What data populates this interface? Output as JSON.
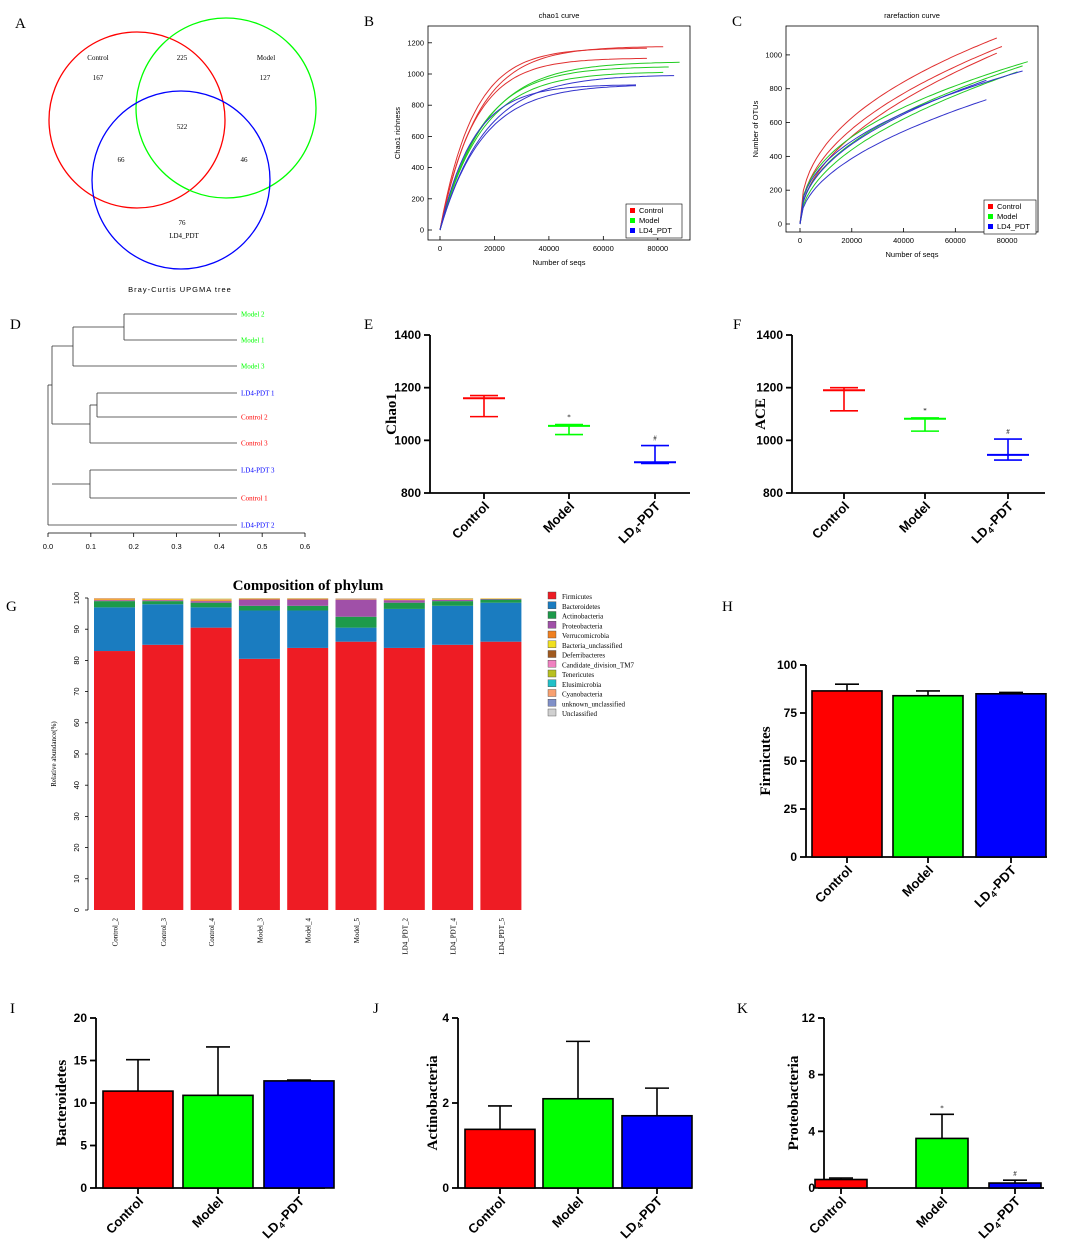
{
  "panel_labels": [
    "A",
    "B",
    "C",
    "D",
    "E",
    "F",
    "G",
    "H",
    "I",
    "J",
    "K"
  ],
  "colors": {
    "control": "#ff0000",
    "model": "#00ff00",
    "ld4": "#0000ff",
    "control_line": "#e03030",
    "model_line": "#22cc22",
    "ld4_line": "#3333cc",
    "control_bar": "#ff0000",
    "model_bar": "#00ff00",
    "ld4_bar": "#0000ff"
  },
  "venn": {
    "sets": [
      {
        "name": "Control",
        "only": "167"
      },
      {
        "name": "Model",
        "only": "127"
      },
      {
        "name": "LD4_PDT",
        "only": "76"
      }
    ],
    "control_model": "225",
    "control_ld4": "66",
    "model_ld4": "46",
    "all": "522"
  },
  "chart_data": [
    {
      "id": "B",
      "type": "line",
      "title": "chao1 curve",
      "xlabel": "Number of seqs",
      "ylabel": "Chao1 richness",
      "xlim": [
        0,
        90000
      ],
      "ylim": [
        0,
        1250
      ],
      "xticks": [
        "0",
        "20000",
        "40000",
        "60000",
        "80000"
      ],
      "yticks": [
        "0",
        "200",
        "400",
        "600",
        "800",
        "1000",
        "1200"
      ],
      "legend": [
        "Control",
        "Model",
        "LD4_PDT"
      ],
      "series": [
        {
          "group": "Control",
          "xmax": 82000,
          "ymax": 1175,
          "k": 0.95
        },
        {
          "group": "Control",
          "xmax": 76000,
          "ymax": 1165,
          "k": 1.1
        },
        {
          "group": "Control",
          "xmax": 76000,
          "ymax": 1100,
          "k": 1.0
        },
        {
          "group": "Model",
          "xmax": 88000,
          "ymax": 1075,
          "k": 0.7
        },
        {
          "group": "Model",
          "xmax": 84000,
          "ymax": 1045,
          "k": 0.75
        },
        {
          "group": "Model",
          "xmax": 82000,
          "ymax": 1010,
          "k": 0.65
        },
        {
          "group": "LD4_PDT",
          "xmax": 86000,
          "ymax": 990,
          "k": 0.6
        },
        {
          "group": "LD4_PDT",
          "xmax": 72000,
          "ymax": 930,
          "k": 0.9
        },
        {
          "group": "LD4_PDT",
          "xmax": 72000,
          "ymax": 925,
          "k": 0.3
        }
      ]
    },
    {
      "id": "C",
      "type": "line",
      "title": "rarefaction curve",
      "xlabel": "Number of seqs",
      "ylabel": "Number of OTUs",
      "xlim": [
        0,
        90000
      ],
      "ylim": [
        0,
        1100
      ],
      "xticks": [
        "0",
        "20000",
        "40000",
        "60000",
        "80000"
      ],
      "yticks": [
        "0",
        "200",
        "400",
        "600",
        "800",
        "1000"
      ],
      "legend": [
        "Control",
        "Model",
        "LD4_PDT"
      ],
      "series": [
        {
          "group": "Control",
          "xmax": 76000,
          "ymax": 1100
        },
        {
          "group": "Control",
          "xmax": 78000,
          "ymax": 1050
        },
        {
          "group": "Control",
          "xmax": 76000,
          "ymax": 1010
        },
        {
          "group": "Model",
          "xmax": 88000,
          "ymax": 960
        },
        {
          "group": "Model",
          "xmax": 86000,
          "ymax": 935
        },
        {
          "group": "Model",
          "xmax": 84000,
          "ymax": 900
        },
        {
          "group": "LD4_PDT",
          "xmax": 86000,
          "ymax": 905
        },
        {
          "group": "LD4_PDT",
          "xmax": 72000,
          "ymax": 850
        },
        {
          "group": "LD4_PDT",
          "xmax": 72000,
          "ymax": 735
        }
      ]
    },
    {
      "id": "D",
      "type": "dendrogram",
      "title": "Bray-Curtis UPGMA tree",
      "xticks": [
        "0.0",
        "0.1",
        "0.2",
        "0.3",
        "0.4",
        "0.5",
        "0.6"
      ],
      "leaves": [
        {
          "name": "Model 2",
          "group": "Model"
        },
        {
          "name": "Model 1",
          "group": "Model"
        },
        {
          "name": "Model 3",
          "group": "Model"
        },
        {
          "name": "LD4-PDT 1",
          "group": "LD4_PDT"
        },
        {
          "name": "Control 2",
          "group": "Control"
        },
        {
          "name": "Control 3",
          "group": "Control"
        },
        {
          "name": "LD4-PDT 3",
          "group": "LD4_PDT"
        },
        {
          "name": "Control 1",
          "group": "Control"
        },
        {
          "name": "LD4-PDT 2",
          "group": "LD4_PDT"
        }
      ]
    },
    {
      "id": "E",
      "type": "scatter",
      "ylabel": "Chao1",
      "ylim": [
        800,
        1400
      ],
      "yticks": [
        "800",
        "1000",
        "1200",
        "1400"
      ],
      "categories": [
        "Control",
        "Model",
        "LD4-PDT"
      ],
      "mean": [
        1160,
        1055,
        917
      ],
      "upper": [
        1170,
        1060,
        980
      ],
      "lower": [
        1090,
        1022,
        912
      ],
      "marks": [
        "",
        "*",
        "#"
      ]
    },
    {
      "id": "F",
      "type": "scatter",
      "ylabel": "ACE",
      "ylim": [
        800,
        1400
      ],
      "yticks": [
        "800",
        "1000",
        "1200",
        "1400"
      ],
      "categories": [
        "Control",
        "Model",
        "LD4-PDT"
      ],
      "mean": [
        1190,
        1082,
        945
      ],
      "upper": [
        1200,
        1085,
        1005
      ],
      "lower": [
        1112,
        1035,
        925
      ],
      "marks": [
        "",
        "*",
        "#"
      ]
    },
    {
      "id": "G",
      "type": "bar",
      "title": "Composition of phylum",
      "ylabel": "Relative abundance(%)",
      "ylim": [
        0,
        100
      ],
      "yticks": [
        "0",
        "10",
        "20",
        "30",
        "40",
        "50",
        "60",
        "70",
        "80",
        "90",
        "100"
      ],
      "categories": [
        "Control_2",
        "Control_3",
        "Control_4",
        "Model_3",
        "Model_4",
        "Model_5",
        "LD4_PDT_2",
        "LD4_PDT_4",
        "LD4_PDT_5"
      ],
      "series": [
        {
          "name": "Firmicutes",
          "color": "#ee1c24",
          "values": [
            83,
            85,
            90.5,
            80.5,
            84,
            86,
            84,
            85,
            86
          ]
        },
        {
          "name": "Bacteroidetes",
          "color": "#1a7cc0",
          "values": [
            14,
            13,
            6.5,
            15.5,
            12,
            4.5,
            12.5,
            12.5,
            12.5
          ]
        },
        {
          "name": "Actinobacteria",
          "color": "#1d9a4a",
          "values": [
            2,
            1,
            1.5,
            1.5,
            1.5,
            3.5,
            2,
            1.5,
            1
          ]
        },
        {
          "name": "Proteobacteria",
          "color": "#a050a8",
          "values": [
            0.3,
            0.3,
            0.5,
            2,
            2,
            5.5,
            0.8,
            0.4,
            0.2
          ]
        },
        {
          "name": "Verrucomicrobia",
          "color": "#f08020",
          "values": [
            0.3,
            0.2,
            0.3,
            0.2,
            0.2,
            0.1,
            0.2,
            0.2,
            0.1
          ]
        },
        {
          "name": "Bacteria_unclassified",
          "color": "#f0e020",
          "values": [
            0.2,
            0.2,
            0.2,
            0.1,
            0.1,
            0.1,
            0.2,
            0.1,
            0.1
          ]
        },
        {
          "name": "Deferribacteres",
          "color": "#a05a1e",
          "values": [
            0.1,
            0.1,
            0.1,
            0.1,
            0.1,
            0.1,
            0.1,
            0.1,
            0
          ]
        },
        {
          "name": "Candidate_division_TM7",
          "color": "#f080c0",
          "values": [
            0.1,
            0,
            0.1,
            0,
            0,
            0,
            0,
            0,
            0
          ]
        },
        {
          "name": "Tenericutes",
          "color": "#b8c020",
          "values": [
            0,
            0,
            0.1,
            0,
            0,
            0,
            0,
            0.1,
            0
          ]
        },
        {
          "name": "Elusimicrobia",
          "color": "#20c0c8",
          "values": [
            0,
            0,
            0,
            0,
            0,
            0,
            0,
            0,
            0
          ]
        },
        {
          "name": "Cyanobacteria",
          "color": "#f8a070",
          "values": [
            0,
            0,
            0,
            0,
            0,
            0,
            0,
            0,
            0
          ]
        },
        {
          "name": "unknown_unclassified",
          "color": "#8090c8",
          "values": [
            0,
            0,
            0,
            0,
            0,
            0,
            0,
            0,
            0
          ]
        },
        {
          "name": "Unclassified",
          "color": "#d0d0d0",
          "values": [
            0,
            0,
            0,
            0,
            0,
            0,
            0,
            0,
            0
          ]
        }
      ]
    },
    {
      "id": "H",
      "type": "bar",
      "ylabel": "Firmicutes",
      "ylim": [
        0,
        100
      ],
      "yticks": [
        "0",
        "25",
        "50",
        "75",
        "100"
      ],
      "categories": [
        "Control",
        "Model",
        "LD4-PDT"
      ],
      "values": [
        86.5,
        84,
        85
      ],
      "errors": [
        3.5,
        2.5,
        0.7
      ],
      "marks": [
        "",
        "",
        ""
      ]
    },
    {
      "id": "I",
      "type": "bar",
      "ylabel": "Bacteroidetes",
      "ylim": [
        0,
        20
      ],
      "yticks": [
        "0",
        "5",
        "10",
        "15",
        "20"
      ],
      "categories": [
        "Control",
        "Model",
        "LD4-PDT"
      ],
      "values": [
        11.4,
        10.9,
        12.6
      ],
      "errors": [
        3.7,
        5.7,
        0.1
      ],
      "marks": [
        "",
        "",
        ""
      ]
    },
    {
      "id": "J",
      "type": "bar",
      "ylabel": "Actinobacteria",
      "ylim": [
        0,
        4
      ],
      "yticks": [
        "0",
        "2",
        "4"
      ],
      "categories": [
        "Control",
        "Model",
        "LD4-PDT"
      ],
      "values": [
        1.38,
        2.1,
        1.7
      ],
      "errors": [
        0.55,
        1.35,
        0.65
      ],
      "marks": [
        "",
        "",
        ""
      ]
    },
    {
      "id": "K",
      "type": "bar",
      "ylabel": "Proteobacteria",
      "ylim": [
        0,
        12
      ],
      "yticks": [
        "0",
        "4",
        "8",
        "12"
      ],
      "categories": [
        "Control",
        "Model",
        "LD4-PDT"
      ],
      "values": [
        0.6,
        3.5,
        0.35
      ],
      "errors": [
        0.1,
        1.7,
        0.2
      ],
      "marks": [
        "",
        "*",
        "#"
      ]
    }
  ]
}
